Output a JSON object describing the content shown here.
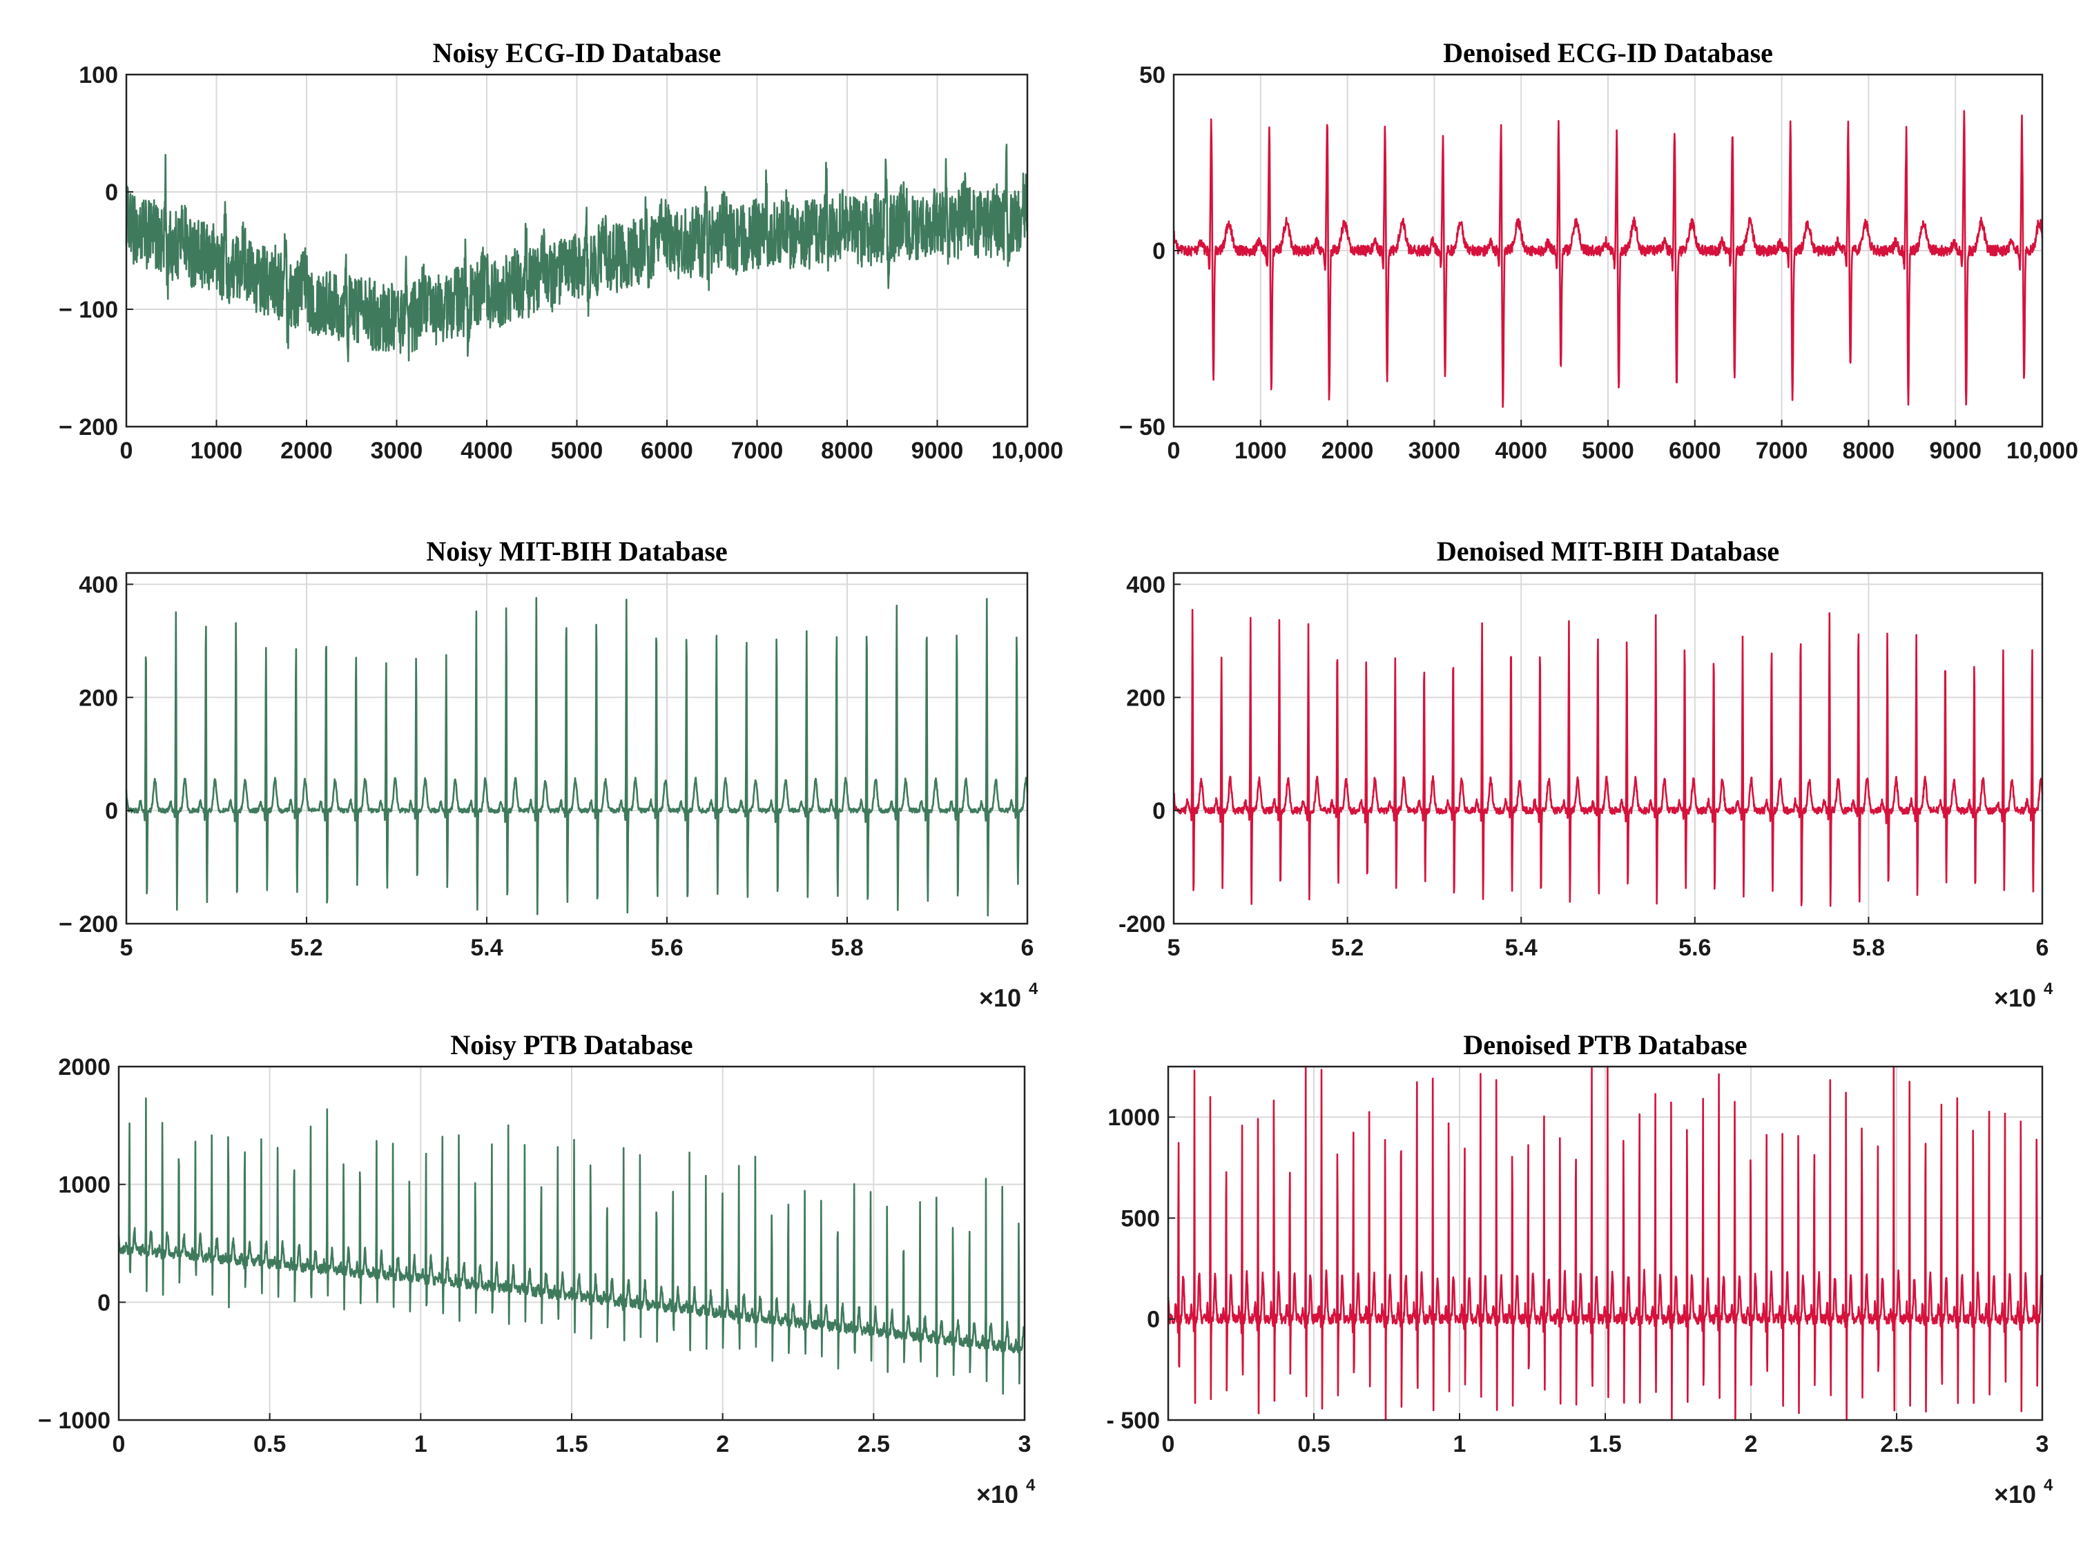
{
  "colors": {
    "noisy": "#3f7a5c",
    "denoised": "#d6123c",
    "grid": "#d9d9d9"
  },
  "chart_data": [
    {
      "type": "line",
      "title": "Noisy ECG-ID Database",
      "xlim": [
        0,
        10000
      ],
      "ylim": [
        -200,
        100
      ],
      "xticks": [
        0,
        1000,
        2000,
        3000,
        4000,
        5000,
        6000,
        7000,
        8000,
        9000,
        10000
      ],
      "xtick_labels": [
        "0",
        "1000",
        "2000",
        "3000",
        "4000",
        "5000",
        "6000",
        "7000",
        "8000",
        "9000",
        "10,000"
      ],
      "yticks": [
        -200,
        -100,
        0,
        100
      ],
      "ytick_labels": [
        "− 200",
        "− 100",
        "0",
        "100"
      ],
      "x_multiplier": "",
      "grid": true,
      "series": [
        {
          "color": "#3f7a5c",
          "signal": {
            "kind": "noisy",
            "beats": 15,
            "r_amp": 45,
            "s_amp": 25,
            "t_amp": 15,
            "noise": 30,
            "baseline": [
              [
                0,
                -30
              ],
              [
                2000,
                -90
              ],
              [
                3000,
                -110
              ],
              [
                6000,
                -45
              ],
              [
                10000,
                -25
              ]
            ]
          }
        }
      ]
    },
    {
      "type": "line",
      "title": "Denoised ECG-ID Database",
      "xlim": [
        0,
        10000
      ],
      "ylim": [
        -50,
        50
      ],
      "xticks": [
        0,
        1000,
        2000,
        3000,
        4000,
        5000,
        6000,
        7000,
        8000,
        9000,
        10000
      ],
      "xtick_labels": [
        "0",
        "1000",
        "2000",
        "3000",
        "4000",
        "5000",
        "6000",
        "7000",
        "8000",
        "9000",
        "10,000"
      ],
      "yticks": [
        -50,
        0,
        50
      ],
      "ytick_labels": [
        "− 50",
        "0",
        "50"
      ],
      "x_multiplier": "",
      "grid": true,
      "series": [
        {
          "color": "#d6123c",
          "signal": {
            "kind": "clean",
            "beats": 15,
            "r_amp": 35,
            "s_amp": 40,
            "t_amp": 8,
            "noise": 1.5,
            "baseline": [
              [
                0,
                0
              ],
              [
                10000,
                0
              ]
            ]
          }
        }
      ]
    },
    {
      "type": "line",
      "title": "Noisy MIT-BIH Database",
      "xlim": [
        50000,
        60000
      ],
      "ylim": [
        -200,
        420
      ],
      "xticks": [
        50000,
        52000,
        54000,
        56000,
        58000,
        60000
      ],
      "xtick_labels": [
        "5",
        "5.2",
        "5.4",
        "5.6",
        "5.8",
        "6"
      ],
      "yticks": [
        -200,
        0,
        200,
        400
      ],
      "ytick_labels": [
        "− 200",
        "0",
        "200",
        "400"
      ],
      "x_multiplier": "×10",
      "x_multiplier_exp": "4",
      "grid": true,
      "series": [
        {
          "color": "#3f7a5c",
          "signal": {
            "kind": "clean",
            "beats": 30,
            "r_amp": 330,
            "s_amp": 165,
            "t_amp": 55,
            "noise": 4,
            "baseline": [
              [
                50000,
                0
              ],
              [
                60000,
                0
              ]
            ]
          }
        }
      ]
    },
    {
      "type": "line",
      "title": "Denoised MIT-BIH Database",
      "xlim": [
        50000,
        60000
      ],
      "ylim": [
        -200,
        420
      ],
      "xticks": [
        50000,
        52000,
        54000,
        56000,
        58000,
        60000
      ],
      "xtick_labels": [
        "5",
        "5.2",
        "5.4",
        "5.6",
        "5.8",
        "6"
      ],
      "yticks": [
        -200,
        0,
        200,
        400
      ],
      "ytick_labels": [
        "-200",
        "0",
        "200",
        "400"
      ],
      "x_multiplier": "×10",
      "x_multiplier_exp": "4",
      "grid": true,
      "series": [
        {
          "color": "#d6123c",
          "signal": {
            "kind": "clean",
            "beats": 30,
            "r_amp": 330,
            "s_amp": 165,
            "t_amp": 55,
            "noise": 6,
            "baseline": [
              [
                50000,
                0
              ],
              [
                60000,
                0
              ]
            ]
          }
        }
      ]
    },
    {
      "type": "line",
      "title": "Noisy PTB Database",
      "xlim": [
        0,
        30000
      ],
      "ylim": [
        -1000,
        2000
      ],
      "xticks": [
        0,
        5000,
        10000,
        15000,
        20000,
        25000,
        30000
      ],
      "xtick_labels": [
        "0",
        "0.5",
        "1",
        "1.5",
        "2",
        "2.5",
        "3"
      ],
      "yticks": [
        -1000,
        0,
        1000,
        2000
      ],
      "ytick_labels": [
        "− 1000",
        "0",
        "1000",
        "2000"
      ],
      "x_multiplier": "×10",
      "x_multiplier_exp": "4",
      "grid": true,
      "series": [
        {
          "color": "#3f7a5c",
          "signal": {
            "kind": "noisy",
            "beats": 55,
            "r_amp": 1250,
            "s_amp": 350,
            "t_amp": 180,
            "noise": 40,
            "baseline": [
              [
                0,
                450
              ],
              [
                10000,
                200
              ],
              [
                20000,
                -100
              ],
              [
                30000,
                -400
              ]
            ]
          }
        }
      ]
    },
    {
      "type": "line",
      "title": "Denoised PTB Database",
      "xlim": [
        0,
        30000
      ],
      "ylim": [
        -500,
        1250
      ],
      "xticks": [
        0,
        5000,
        10000,
        15000,
        20000,
        25000,
        30000
      ],
      "xtick_labels": [
        "0",
        "0.5",
        "1",
        "1.5",
        "2",
        "2.5",
        "3"
      ],
      "yticks": [
        -500,
        0,
        500,
        1000
      ],
      "ytick_labels": [
        "- 500",
        "0",
        "500",
        "1000"
      ],
      "x_multiplier": "×10",
      "x_multiplier_exp": "4",
      "grid": true,
      "series": [
        {
          "color": "#d6123c",
          "signal": {
            "kind": "clean",
            "beats": 55,
            "r_amp": 1150,
            "s_amp": 470,
            "t_amp": 220,
            "noise": 25,
            "baseline": [
              [
                0,
                0
              ],
              [
                30000,
                0
              ]
            ]
          }
        }
      ]
    }
  ]
}
